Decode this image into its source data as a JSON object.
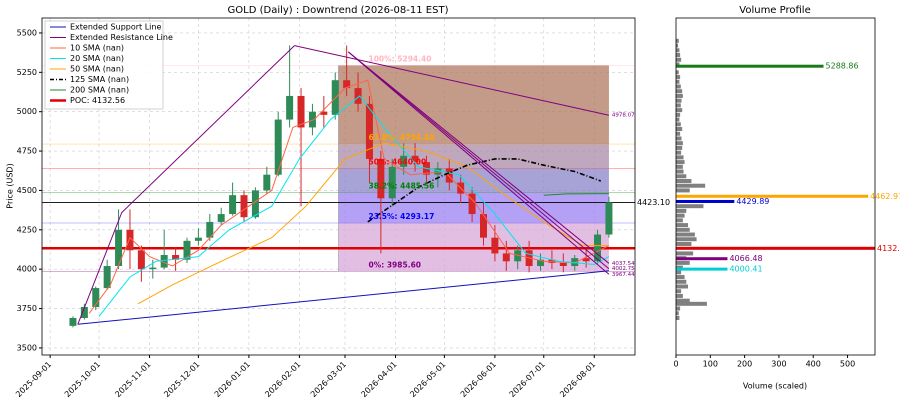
{
  "chart_data": [
    {
      "type": "candlestick",
      "title": "GOLD (Daily) : Downtrend (2026-08-11 EST)",
      "y_label": "Price (USD)",
      "xlim": [
        "2025-08-27",
        "2026-08-26"
      ],
      "ylim": [
        3455,
        5595
      ],
      "xticks": [
        "2025-09-01",
        "2025-10-01",
        "2025-11-01",
        "2025-12-01",
        "2026-01-01",
        "2026-02-01",
        "2026-03-01",
        "2026-04-01",
        "2026-05-01",
        "2026-06-01",
        "2026-07-01",
        "2026-08-01"
      ],
      "yticks": [
        3500,
        3750,
        4000,
        4250,
        4500,
        4750,
        5000,
        5250,
        5500
      ],
      "grid": true,
      "up_color": "#2e8b57",
      "down_color": "#d62728",
      "x": [
        "2025-09-15",
        "2025-09-22",
        "2025-09-29",
        "2025-10-06",
        "2025-10-13",
        "2025-10-20",
        "2025-10-27",
        "2025-11-03",
        "2025-11-10",
        "2025-11-17",
        "2025-11-24",
        "2025-12-01",
        "2025-12-08",
        "2025-12-15",
        "2025-12-22",
        "2025-12-29",
        "2026-01-05",
        "2026-01-12",
        "2026-01-19",
        "2026-01-26",
        "2026-02-02",
        "2026-02-09",
        "2026-02-16",
        "2026-02-23",
        "2026-03-02",
        "2026-03-09",
        "2026-03-16",
        "2026-03-23",
        "2026-03-30",
        "2026-04-06",
        "2026-04-13",
        "2026-04-20",
        "2026-04-27",
        "2026-05-04",
        "2026-05-11",
        "2026-05-18",
        "2026-05-25",
        "2026-06-01",
        "2026-06-08",
        "2026-06-15",
        "2026-06-22",
        "2026-06-29",
        "2026-07-06",
        "2026-07-13",
        "2026-07-20",
        "2026-07-27",
        "2026-08-03",
        "2026-08-10"
      ],
      "open": [
        3640,
        3690,
        3760,
        3880,
        4020,
        4250,
        4120,
        4000,
        4010,
        4090,
        4060,
        4180,
        4200,
        4300,
        4350,
        4470,
        4330,
        4500,
        4600,
        4950,
        5100,
        4900,
        5000,
        4980,
        5200,
        5150,
        5050,
        4700,
        4450,
        4650,
        4720,
        4680,
        4600,
        4640,
        4550,
        4480,
        4350,
        4200,
        4100,
        4050,
        4120,
        4020,
        4060,
        4040,
        4020,
        4070,
        4050,
        4220
      ],
      "high": [
        3700,
        3780,
        3890,
        4060,
        4380,
        4380,
        4150,
        4060,
        4250,
        4140,
        4200,
        4260,
        4350,
        4390,
        4550,
        4500,
        4520,
        4650,
        5000,
        5420,
        5150,
        5050,
        5100,
        5250,
        5420,
        5250,
        5100,
        4750,
        4700,
        4800,
        4800,
        4720,
        4680,
        4700,
        4600,
        4520,
        4420,
        4280,
        4180,
        4150,
        4180,
        4100,
        4120,
        4100,
        4090,
        4120,
        4250,
        4460
      ],
      "low": [
        3630,
        3680,
        3740,
        3870,
        4000,
        4000,
        3920,
        3940,
        4000,
        3990,
        4040,
        4150,
        4180,
        4280,
        4340,
        4300,
        4320,
        4480,
        4590,
        4900,
        4400,
        4850,
        4900,
        4950,
        5100,
        5000,
        4550,
        4100,
        4400,
        4600,
        4620,
        4550,
        4520,
        4500,
        4420,
        4300,
        4150,
        4050,
        3990,
        4000,
        3980,
        3990,
        4000,
        3980,
        3990,
        4010,
        4030,
        4200
      ],
      "close": [
        3690,
        3760,
        3880,
        4020,
        4250,
        4120,
        4000,
        4010,
        4090,
        4060,
        4180,
        4200,
        4300,
        4350,
        4470,
        4330,
        4500,
        4600,
        4950,
        5100,
        4900,
        5000,
        4980,
        5200,
        5150,
        5050,
        4700,
        4450,
        4650,
        4720,
        4680,
        4600,
        4640,
        4550,
        4480,
        4350,
        4200,
        4100,
        4050,
        4120,
        4020,
        4060,
        4040,
        4020,
        4070,
        4050,
        4220,
        4423.1
      ],
      "series": [
        {
          "name": "10 SMA (nan)",
          "color": "#ff6347",
          "dash": false,
          "x": [
            "2025-09-25",
            "2025-10-08",
            "2025-10-20",
            "2025-11-01",
            "2025-11-15",
            "2025-12-01",
            "2025-12-15",
            "2026-01-01",
            "2026-01-15",
            "2026-01-28",
            "2026-02-10",
            "2026-03-01",
            "2026-03-15",
            "2026-03-25",
            "2026-04-10",
            "2026-05-01",
            "2026-05-20",
            "2026-06-10",
            "2026-07-01",
            "2026-07-20",
            "2026-08-10"
          ],
          "values": [
            3720,
            3900,
            4200,
            4080,
            4020,
            4120,
            4280,
            4400,
            4500,
            4900,
            4950,
            5150,
            5200,
            4700,
            4600,
            4620,
            4420,
            4100,
            4050,
            4040,
            4150
          ]
        },
        {
          "name": "20 SMA (nan)",
          "color": "#00e5ee",
          "dash": false,
          "x": [
            "2025-10-01",
            "2025-10-20",
            "2025-11-05",
            "2025-12-01",
            "2025-12-20",
            "2026-01-15",
            "2026-02-01",
            "2026-02-20",
            "2026-03-10",
            "2026-03-25",
            "2026-04-15",
            "2026-05-10",
            "2026-06-01",
            "2026-06-20",
            "2026-07-10",
            "2026-08-01",
            "2026-08-10"
          ],
          "values": [
            3700,
            3950,
            4050,
            4080,
            4250,
            4400,
            4700,
            4950,
            5100,
            4900,
            4650,
            4600,
            4350,
            4100,
            4050,
            4030,
            4080
          ]
        },
        {
          "name": "50 SMA (nan)",
          "color": "#ffa500",
          "dash": false,
          "x": [
            "2025-10-25",
            "2025-11-15",
            "2025-12-15",
            "2026-01-15",
            "2026-02-05",
            "2026-03-01",
            "2026-03-25",
            "2026-04-20",
            "2026-05-15",
            "2026-06-10",
            "2026-07-01",
            "2026-07-25",
            "2026-08-10"
          ],
          "values": [
            3780,
            3900,
            4050,
            4200,
            4400,
            4700,
            4800,
            4750,
            4650,
            4450,
            4300,
            4150,
            4150
          ]
        },
        {
          "name": "125 SMA (nan)",
          "color": "#000000",
          "dash": true,
          "x": [
            "2026-03-15",
            "2026-04-01",
            "2026-04-15",
            "2026-05-01",
            "2026-05-15",
            "2026-06-01",
            "2026-06-15",
            "2026-07-01",
            "2026-07-20",
            "2026-08-05"
          ],
          "values": [
            4300,
            4420,
            4520,
            4600,
            4660,
            4700,
            4700,
            4660,
            4620,
            4560
          ]
        },
        {
          "name": "200 SMA (nan)",
          "color": "#228b22",
          "dash": false,
          "x": [
            "2026-07-01",
            "2026-07-15",
            "2026-08-10"
          ],
          "values": [
            4470,
            4478,
            4480
          ]
        }
      ],
      "trend_lines": [
        {
          "name": "Extended Support Line",
          "color": "#1010c0",
          "legend": true,
          "show_end_value": false,
          "x": [
            "2025-09-18",
            "2026-08-10"
          ],
          "values": [
            3650,
            3990
          ]
        },
        {
          "name": "Extended Resistance Line",
          "color": "#800080",
          "legend": true,
          "show_end_value": false,
          "x": [
            "2025-09-18",
            "2025-10-15",
            "2026-01-29"
          ],
          "values": [
            3650,
            4360,
            5420
          ]
        },
        {
          "color": "#800080",
          "legend": false,
          "show_end_value": true,
          "x": [
            "2026-01-29",
            "2026-08-10"
          ],
          "values": [
            5420,
            4978.07
          ]
        },
        {
          "color": "#800080",
          "legend": false,
          "show_end_value": true,
          "x": [
            "2026-03-03",
            "2026-08-10"
          ],
          "values": [
            5380,
            4037.54
          ]
        },
        {
          "color": "#800080",
          "legend": false,
          "show_end_value": true,
          "x": [
            "2026-03-03",
            "2026-08-10"
          ],
          "values": [
            5380,
            4002.75
          ]
        },
        {
          "color": "#800080",
          "legend": false,
          "show_end_value": true,
          "x": [
            "2026-03-03",
            "2026-08-10"
          ],
          "values": [
            5380,
            3967.44
          ]
        }
      ],
      "fib": {
        "x": [
          "2026-02-25",
          "2026-08-10"
        ],
        "levels": [
          {
            "label": "0%: 3985.60",
            "value": 3985.6,
            "color": "#800080",
            "fill": "#d8a8d8"
          },
          {
            "label": "23.5%: 4293.17",
            "value": 4293.17,
            "color": "#0000ff",
            "fill": "#9b80f0"
          },
          {
            "label": "38.2%: 4485.56",
            "value": 4485.56,
            "color": "#008000",
            "fill": "#8a84c8"
          },
          {
            "label": "50%: 4640.00",
            "value": 4640,
            "color": "#ff0000",
            "fill": "#a98aa8"
          },
          {
            "label": "61.8%: 4794.40",
            "value": 4794.4,
            "color": "#ffa500",
            "fill": "#b07860"
          },
          {
            "label": "100%: 5294.40",
            "value": 5294.4,
            "color": "#ffb6c1",
            "fill": null
          }
        ]
      },
      "price_line": {
        "value": 4423.1,
        "label": "4423.10",
        "color": "#000000"
      },
      "poc": {
        "value": 4132.56,
        "color": "#e00000",
        "legend": "POC: 4132.56"
      }
    },
    {
      "type": "bar",
      "title": "Volume Profile",
      "x_label": "Volume (scaled)",
      "xlim": [
        0,
        580
      ],
      "xticks": [
        0,
        100,
        200,
        300,
        400,
        500
      ],
      "color": "#808080",
      "levels": [
        5450,
        5420,
        5390,
        5360,
        5330,
        5300,
        5250,
        5220,
        5190,
        5160,
        5130,
        5100,
        5070,
        5040,
        5010,
        4980,
        4950,
        4920,
        4890,
        4860,
        4830,
        4800,
        4770,
        4740,
        4710,
        4680,
        4650,
        4620,
        4590,
        4560,
        4530,
        4500,
        4400,
        4370,
        4340,
        4310,
        4280,
        4250,
        4220,
        4190,
        4160,
        4100,
        4070,
        4040,
        4010,
        3980,
        3950,
        3920,
        3890,
        3860,
        3830,
        3800,
        3780,
        3750,
        3720,
        3690
      ],
      "values": [
        8,
        6,
        10,
        12,
        15,
        10,
        8,
        12,
        10,
        14,
        18,
        20,
        16,
        14,
        18,
        12,
        10,
        14,
        18,
        12,
        16,
        20,
        18,
        15,
        22,
        25,
        20,
        22,
        30,
        45,
        85,
        40,
        80,
        30,
        25,
        20,
        35,
        40,
        55,
        60,
        45,
        50,
        30,
        40,
        20,
        15,
        25,
        30,
        35,
        15,
        20,
        40,
        90,
        12,
        8,
        10
      ],
      "highlighted": [
        {
          "level": 5288.86,
          "value": 430,
          "color": "#1a7a1a"
        },
        {
          "level": 4462.97,
          "value": 560,
          "color": "#ffa500"
        },
        {
          "level": 4429.89,
          "value": 170,
          "color": "#0000cd"
        },
        {
          "level": 4132.56,
          "value": 580,
          "color": "#e00000"
        },
        {
          "level": 4066.48,
          "value": 150,
          "color": "#800080"
        },
        {
          "level": 4000.41,
          "value": 150,
          "color": "#00ced1"
        }
      ]
    }
  ]
}
